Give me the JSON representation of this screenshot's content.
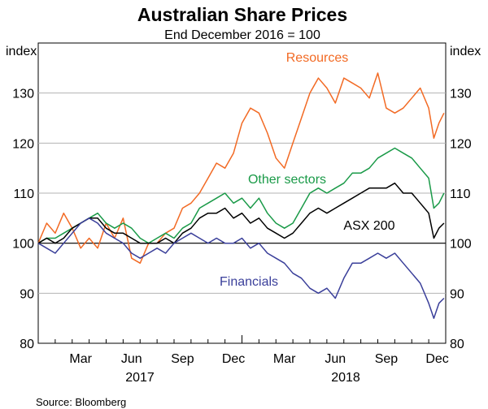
{
  "chart_data": {
    "type": "line",
    "title": "Australian Share Prices",
    "subtitle": "End December 2016 = 100",
    "y_unit_left": "index",
    "y_unit_right": "index",
    "ylim": [
      80,
      140
    ],
    "yticks": [
      80,
      90,
      100,
      110,
      120,
      130
    ],
    "reference_line": 100,
    "x_months": [
      "Mar",
      "Jun",
      "Sep",
      "Dec",
      "Mar",
      "Jun",
      "Sep",
      "Dec"
    ],
    "x_years": [
      "2017",
      "2018"
    ],
    "x_unit": "months since end-December 2016",
    "xlim": [
      0,
      24
    ],
    "source": "Source:   Bloomberg",
    "series": [
      {
        "name": "Resources",
        "color": "#f26a24",
        "x": [
          0,
          0.5,
          1,
          1.5,
          2,
          2.5,
          3,
          3.5,
          4,
          4.5,
          5,
          5.5,
          6,
          6.5,
          7,
          7.5,
          8,
          8.5,
          9,
          9.5,
          10,
          10.5,
          11,
          11.5,
          12,
          12.5,
          13,
          13.5,
          14,
          14.5,
          15,
          15.5,
          16,
          16.5,
          17,
          17.5,
          18,
          18.5,
          19,
          19.5,
          20,
          20.5,
          21,
          21.5,
          22,
          22.5,
          23,
          23.3,
          23.6,
          23.9
        ],
        "values": [
          100,
          104,
          102,
          106,
          103,
          99,
          101,
          99,
          104,
          101,
          105,
          97,
          96,
          100,
          100,
          102,
          103,
          107,
          108,
          110,
          113,
          116,
          115,
          118,
          124,
          127,
          126,
          122,
          117,
          115,
          120,
          125,
          130,
          133,
          131,
          128,
          133,
          132,
          131,
          129,
          134,
          127,
          126,
          127,
          129,
          131,
          127,
          121,
          124,
          126
        ]
      },
      {
        "name": "Other sectors",
        "color": "#1a9a48",
        "x": [
          0,
          0.5,
          1,
          1.5,
          2,
          2.5,
          3,
          3.5,
          4,
          4.5,
          5,
          5.5,
          6,
          6.5,
          7,
          7.5,
          8,
          8.5,
          9,
          9.5,
          10,
          10.5,
          11,
          11.5,
          12,
          12.5,
          13,
          13.5,
          14,
          14.5,
          15,
          15.5,
          16,
          16.5,
          17,
          17.5,
          18,
          18.5,
          19,
          19.5,
          20,
          20.5,
          21,
          21.5,
          22,
          22.5,
          23,
          23.3,
          23.6,
          23.9
        ],
        "values": [
          100,
          101,
          101,
          102,
          103,
          104,
          105,
          106,
          104,
          103,
          104,
          103,
          101,
          100,
          101,
          102,
          101,
          103,
          104,
          107,
          108,
          109,
          110,
          108,
          109,
          107,
          109,
          106,
          104,
          103,
          104,
          107,
          110,
          111,
          110,
          111,
          112,
          114,
          114,
          115,
          117,
          118,
          119,
          118,
          117,
          115,
          113,
          107,
          108,
          110
        ]
      },
      {
        "name": "ASX 200",
        "color": "#000000",
        "x": [
          0,
          0.5,
          1,
          1.5,
          2,
          2.5,
          3,
          3.5,
          4,
          4.5,
          5,
          5.5,
          6,
          6.5,
          7,
          7.5,
          8,
          8.5,
          9,
          9.5,
          10,
          10.5,
          11,
          11.5,
          12,
          12.5,
          13,
          13.5,
          14,
          14.5,
          15,
          15.5,
          16,
          16.5,
          17,
          17.5,
          18,
          18.5,
          19,
          19.5,
          20,
          20.5,
          21,
          21.5,
          22,
          22.5,
          23,
          23.3,
          23.6,
          23.9
        ],
        "values": [
          100,
          101,
          100,
          101,
          103,
          104,
          105,
          105,
          103,
          102,
          102,
          101,
          100,
          100,
          100,
          101,
          100,
          102,
          103,
          105,
          106,
          106,
          107,
          105,
          106,
          104,
          105,
          103,
          102,
          101,
          102,
          104,
          106,
          107,
          106,
          107,
          108,
          109,
          110,
          111,
          111,
          111,
          112,
          110,
          110,
          108,
          106,
          101,
          103,
          104
        ]
      },
      {
        "name": "Financials",
        "color": "#3a3f9a",
        "x": [
          0,
          0.5,
          1,
          1.5,
          2,
          2.5,
          3,
          3.5,
          4,
          4.5,
          5,
          5.5,
          6,
          6.5,
          7,
          7.5,
          8,
          8.5,
          9,
          9.5,
          10,
          10.5,
          11,
          11.5,
          12,
          12.5,
          13,
          13.5,
          14,
          14.5,
          15,
          15.5,
          16,
          16.5,
          17,
          17.5,
          18,
          18.5,
          19,
          19.5,
          20,
          20.5,
          21,
          21.5,
          22,
          22.5,
          23,
          23.3,
          23.6,
          23.9
        ],
        "values": [
          100,
          99,
          98,
          100,
          102,
          104,
          105,
          104,
          102,
          101,
          100,
          98,
          97,
          98,
          99,
          98,
          100,
          101,
          102,
          101,
          100,
          101,
          100,
          100,
          101,
          99,
          100,
          98,
          97,
          96,
          94,
          93,
          91,
          90,
          91,
          89,
          93,
          96,
          96,
          97,
          98,
          97,
          98,
          96,
          94,
          92,
          88,
          85,
          88,
          89
        ]
      }
    ],
    "label_positions": "inline: Resources near top, Other sectors and ASX 200 to the right, Financials below the 100 line"
  }
}
